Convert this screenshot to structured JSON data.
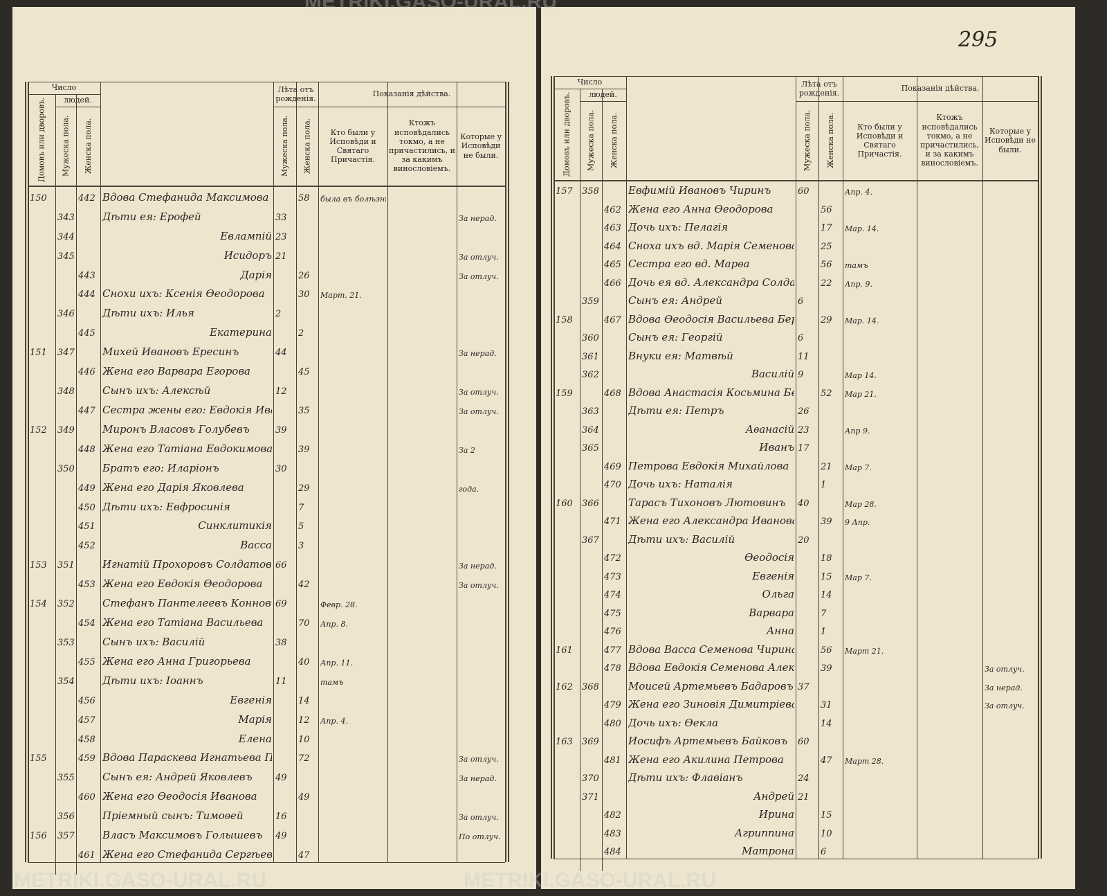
{
  "watermark": "METRIKI.GASO-URAL.RU",
  "page_number": "295",
  "headers": {
    "number": "Число",
    "people": "людей.",
    "houses": "Домовъ или дворовъ.",
    "male": "Мужеска пола.",
    "female": "Женска пола.",
    "years": "Лѣта отъ рожденія.",
    "actions": "Показанія дѣйства.",
    "confessed": "Кто были у Исповѣди и Святаго Причастія.",
    "notes": "Ктожъ исповѣдались токмо, а не причастились, и за какимъ винословіемъ.",
    "absent": "Которые у Исповѣди не были."
  },
  "pages": [
    {
      "rows": [
        {
          "h": "150",
          "f": "442",
          "name": "Вдова Стефанида Максимова Чирина",
          "fa": "58",
          "conf": "была въ болѣзни"
        },
        {
          "m": "343",
          "name": "Дѣти ея: Ерофей",
          "ma": "33",
          "abs": "За нерад."
        },
        {
          "m": "344",
          "name": "Евлампій",
          "ma": "23"
        },
        {
          "m": "345",
          "name": "Исидоръ",
          "ma": "21",
          "abs": "За отлуч."
        },
        {
          "f": "443",
          "name": "Дарія",
          "fa": "26",
          "abs": "За отлуч."
        },
        {
          "f": "444",
          "name": "Снохи ихъ: Ксенія Ѳеодорова",
          "fa": "30",
          "conf": "Март. 21."
        },
        {
          "m": "346",
          "name": "Дѣти ихъ: Илья",
          "ma": "2"
        },
        {
          "f": "445",
          "name": "Екатерина",
          "fa": "2"
        },
        {
          "h": "151",
          "m": "347",
          "name": "Михей Ивановъ Ересинъ",
          "ma": "44",
          "abs": "За нерад."
        },
        {
          "f": "446",
          "name": "Жена его Варвара Егорова",
          "fa": "45"
        },
        {
          "m": "348",
          "name": "Сынъ ихъ: Алексѣй",
          "ma": "12",
          "abs": "За отлуч."
        },
        {
          "f": "447",
          "name": "Сестра жены его: Евдокія Иванова",
          "fa": "35",
          "abs": "За отлуч."
        },
        {
          "h": "152",
          "m": "349",
          "name": "Миронъ Власовъ Голубевъ",
          "ma": "39"
        },
        {
          "f": "448",
          "name": "Жена его Татіана Евдокимова",
          "fa": "39",
          "abs": "За 2"
        },
        {
          "m": "350",
          "name": "Братъ его: Иларіонъ",
          "ma": "30"
        },
        {
          "f": "449",
          "name": "Жена его Дарія Яковлева",
          "fa": "29",
          "abs": "года."
        },
        {
          "f": "450",
          "name": "Дѣти ихъ: Евфросинія",
          "fa": "7"
        },
        {
          "f": "451",
          "name": "Синклитикія",
          "fa": "5"
        },
        {
          "f": "452",
          "name": "Васса",
          "fa": "3"
        },
        {
          "h": "153",
          "m": "351",
          "name": "Игнатій Прохоровъ Солдатовъ",
          "ma": "66",
          "abs": "За нерад."
        },
        {
          "f": "453",
          "name": "Жена его Евдокія Ѳеодорова",
          "fa": "42",
          "abs": "За отлуч."
        },
        {
          "h": "154",
          "m": "352",
          "name": "Стефанъ Пантелеевъ Конновъ",
          "ma": "69",
          "conf": "Февр. 28."
        },
        {
          "f": "454",
          "name": "Жена его Татіана Васильева",
          "fa": "70",
          "conf": "Апр. 8."
        },
        {
          "m": "353",
          "name": "Сынъ ихъ: Василій",
          "ma": "38"
        },
        {
          "f": "455",
          "name": "Жена его Анна Григорьева",
          "fa": "40",
          "conf": "Апр. 11."
        },
        {
          "m": "354",
          "name": "Дѣти ихъ: Іоаннъ",
          "ma": "11",
          "conf": "тамъ"
        },
        {
          "f": "456",
          "name": "Евгенія",
          "fa": "14"
        },
        {
          "f": "457",
          "name": "Марія",
          "fa": "12",
          "conf": "Апр. 4."
        },
        {
          "f": "458",
          "name": "Елена",
          "fa": "10"
        },
        {
          "h": "155",
          "f": "459",
          "name": "Вдова Параскева Игнатьева Поморцева",
          "fa": "72",
          "abs": "За отлуч."
        },
        {
          "m": "355",
          "name": "Сынъ ея: Андрей Яковлевъ",
          "ma": "49",
          "abs": "За нерад."
        },
        {
          "f": "460",
          "name": "Жена его Ѳеодосія Иванова",
          "fa": "49"
        },
        {
          "m": "356",
          "name": "Пріемный сынъ: Тимоѳей",
          "ma": "16",
          "abs": "За отлуч."
        },
        {
          "h": "156",
          "m": "357",
          "name": "Власъ Максимовъ Голышевъ",
          "ma": "49",
          "abs": "По отлуч."
        },
        {
          "f": "461",
          "name": "Жена его Стефанида Сергѣева",
          "fa": "47"
        }
      ]
    },
    {
      "rows": [
        {
          "h": "157",
          "m": "358",
          "name": "Евфимій Ивановъ Чиринъ",
          "ma": "60",
          "conf": "Апр. 4."
        },
        {
          "f": "462",
          "name": "Жена его Анна Ѳеодорова",
          "fa": "56"
        },
        {
          "f": "463",
          "name": "Дочь ихъ: Пелагія",
          "fa": "17",
          "conf": "Мар. 14."
        },
        {
          "f": "464",
          "name": "Сноха ихъ вд. Марія Семенова",
          "fa": "25"
        },
        {
          "f": "465",
          "name": "Сестра его вд. Марѳа",
          "fa": "56",
          "conf": "тамъ"
        },
        {
          "f": "466",
          "name": "Дочь ея вд. Александра Солдатова",
          "fa": "22",
          "conf": "Апр. 9."
        },
        {
          "m": "359",
          "name": "Сынъ ея: Андрей",
          "ma": "6"
        },
        {
          "h": "158",
          "f": "467",
          "name": "Вдова Ѳеодосія Васильева Березина",
          "fa": "29",
          "conf": "Мар. 14."
        },
        {
          "m": "360",
          "name": "Сынъ ея: Георгій",
          "ma": "6"
        },
        {
          "m": "361",
          "name": "Внуки ея: Матвѣй",
          "ma": "11"
        },
        {
          "m": "362",
          "name": "Василій",
          "ma": "9",
          "conf": "Мар 14."
        },
        {
          "h": "159",
          "f": "468",
          "name": "Вдова Анастасія Косьмина Безсмертнова",
          "fa": "52",
          "conf": "Мар 21."
        },
        {
          "m": "363",
          "name": "Дѣти ея: Петръ",
          "ma": "26"
        },
        {
          "m": "364",
          "name": "Аѳанасій",
          "ma": "23",
          "conf": "Апр 9."
        },
        {
          "m": "365",
          "name": "Иванъ",
          "ma": "17"
        },
        {
          "f": "469",
          "name": "Петрова Евдокія Михайлова",
          "fa": "21",
          "conf": "Мар 7."
        },
        {
          "f": "470",
          "name": "Дочь ихъ: Наталія",
          "fa": "1"
        },
        {
          "h": "160",
          "m": "366",
          "name": "Тарасъ Тихоновъ Лютовинъ",
          "ma": "40",
          "conf": "Мар 28."
        },
        {
          "f": "471",
          "name": "Жена его Александра Иванова",
          "fa": "39",
          "conf": "9 Апр."
        },
        {
          "m": "367",
          "name": "Дѣти ихъ: Василій",
          "ma": "20"
        },
        {
          "f": "472",
          "name": "Ѳеодосія",
          "fa": "18"
        },
        {
          "f": "473",
          "name": "Евгенія",
          "fa": "15",
          "conf": "Мар 7."
        },
        {
          "f": "474",
          "name": "Ольга",
          "fa": "14"
        },
        {
          "f": "475",
          "name": "Варвара",
          "fa": "7"
        },
        {
          "f": "476",
          "name": "Анна",
          "fa": "1"
        },
        {
          "h": "161",
          "f": "477",
          "name": "Вдова Васса Семенова Чирина",
          "fa": "56",
          "conf": "Март 21."
        },
        {
          "f": "478",
          "name": "Вдова Евдокія Семенова Александрова",
          "fa": "39",
          "abs": "За отлуч."
        },
        {
          "h": "162",
          "m": "368",
          "name": "Моисей Артемьевъ Бадаровъ",
          "ma": "37",
          "abs": "За нерад."
        },
        {
          "f": "479",
          "name": "Жена его Зиновія Димитріева",
          "fa": "31",
          "abs": "За отлуч."
        },
        {
          "f": "480",
          "name": "Дочь ихъ: Ѳекла",
          "fa": "14"
        },
        {
          "h": "163",
          "m": "369",
          "name": "Иосифъ Артемьевъ Байковъ",
          "ma": "60"
        },
        {
          "f": "481",
          "name": "Жена его Акилина Петрова",
          "fa": "47",
          "conf": "Март 28."
        },
        {
          "m": "370",
          "name": "Дѣти ихъ: Флавіанъ",
          "ma": "24"
        },
        {
          "m": "371",
          "name": "Андрей",
          "ma": "21"
        },
        {
          "f": "482",
          "name": "Ирина",
          "fa": "15"
        },
        {
          "f": "483",
          "name": "Агриппина",
          "fa": "10"
        },
        {
          "f": "484",
          "name": "Матрона",
          "fa": "6"
        }
      ]
    }
  ]
}
